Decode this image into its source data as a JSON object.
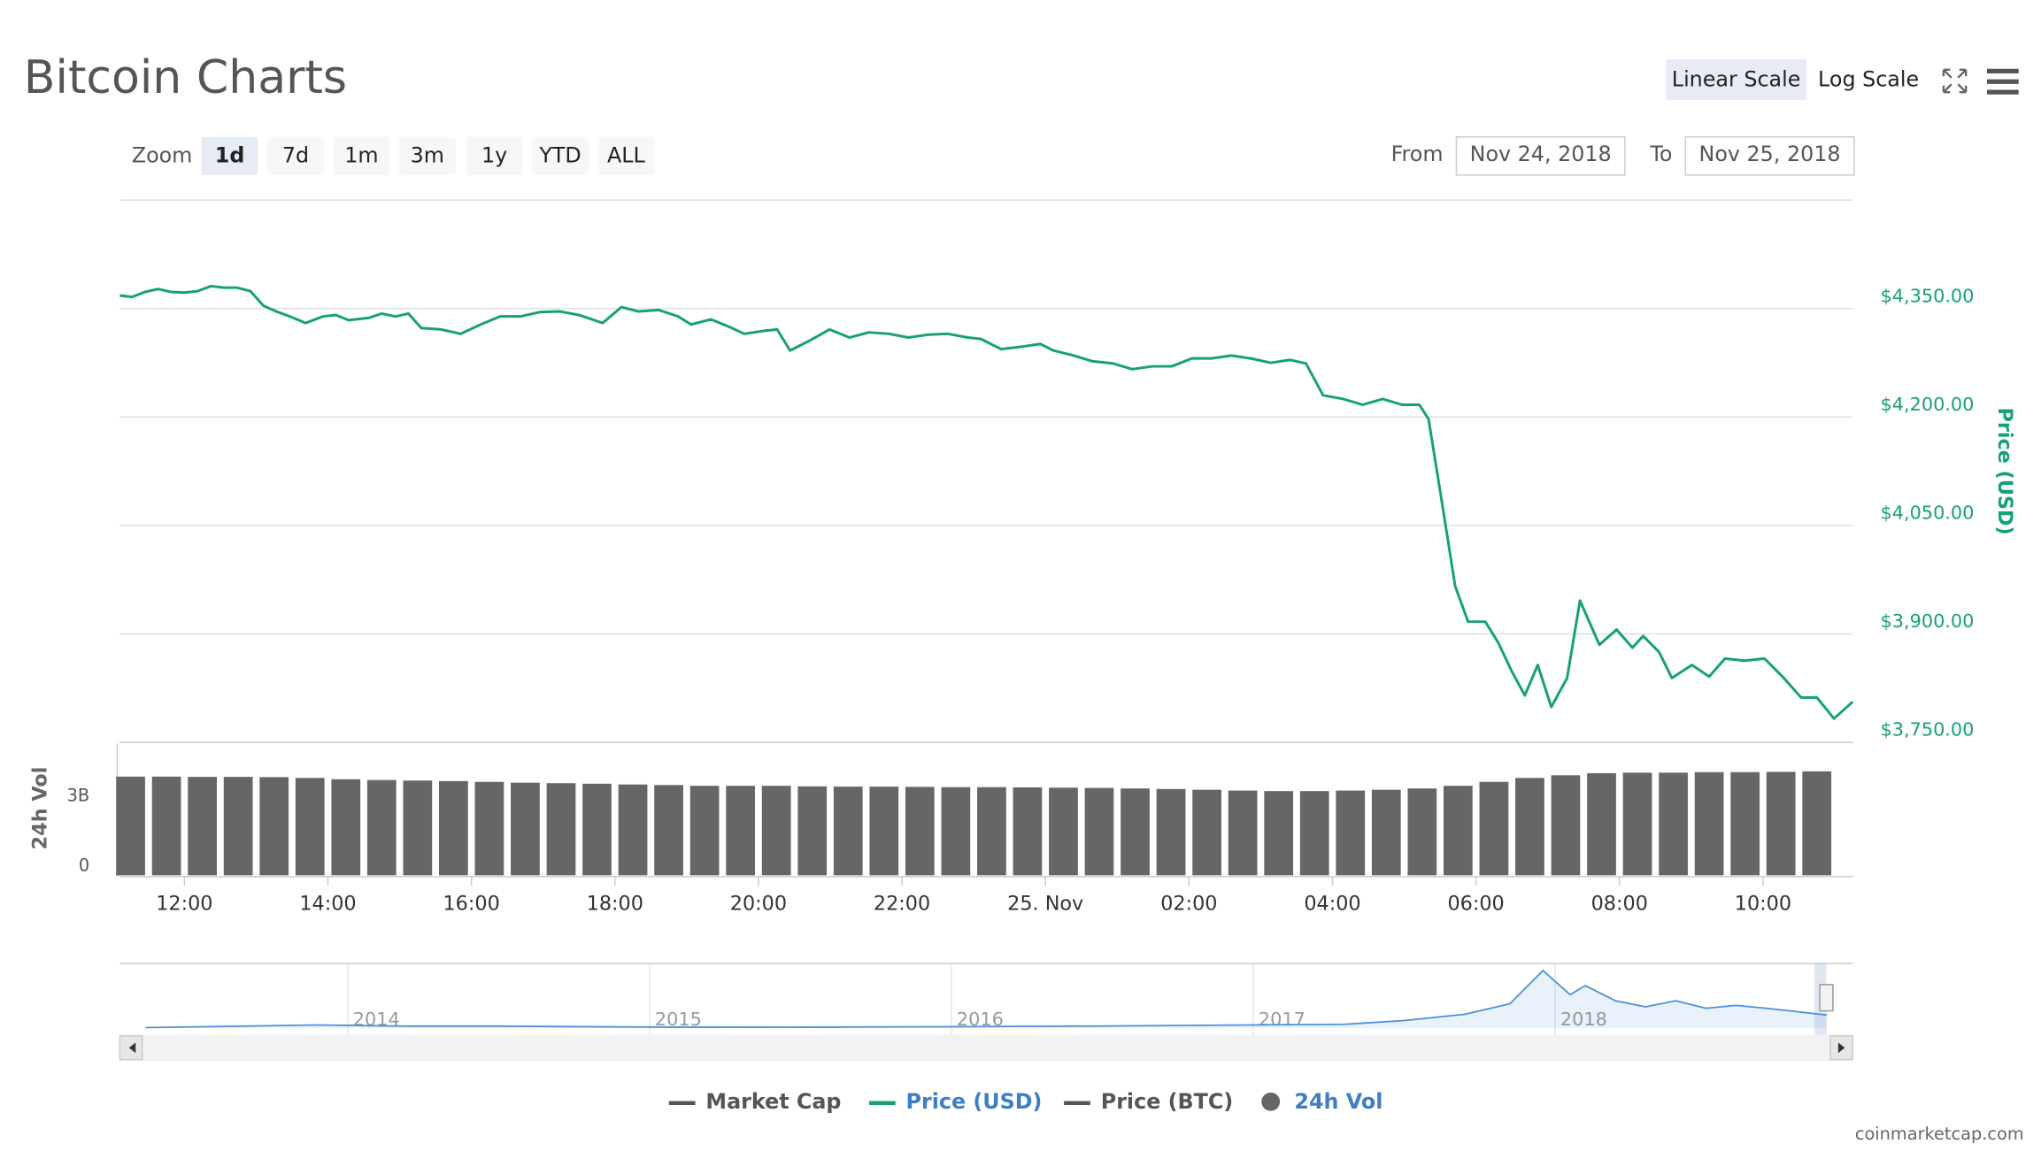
{
  "chart_data": [
    {
      "type": "line",
      "title": "Bitcoin Charts",
      "scale_buttons": [
        "Linear Scale",
        "Log Scale"
      ],
      "scale_selected": 0,
      "zoom_label": "Zoom",
      "zoom_buttons": [
        "1d",
        "7d",
        "1m",
        "3m",
        "1y",
        "YTD",
        "ALL"
      ],
      "zoom_selected": 0,
      "range": {
        "from_label": "From",
        "from": "Nov 24, 2018",
        "to_label": "To",
        "to": "Nov 25, 2018"
      },
      "ylabel": "Price (USD)",
      "y2label": "24h Vol",
      "credit": "coinmarketcap.com",
      "grid": true,
      "xlim": [
        11.1,
        35.25
      ],
      "xticks": [
        {
          "value": 12,
          "label": "12:00"
        },
        {
          "value": 14,
          "label": "14:00"
        },
        {
          "value": 16,
          "label": "16:00"
        },
        {
          "value": 18,
          "label": "18:00"
        },
        {
          "value": 20,
          "label": "20:00"
        },
        {
          "value": 22,
          "label": "22:00"
        },
        {
          "value": 24,
          "label": "25. Nov"
        },
        {
          "value": 26,
          "label": "02:00"
        },
        {
          "value": 28,
          "label": "04:00"
        },
        {
          "value": 30,
          "label": "06:00"
        },
        {
          "value": 32,
          "label": "08:00"
        },
        {
          "value": 34,
          "label": "10:00"
        }
      ],
      "ylim": [
        3750,
        4500
      ],
      "yticks": [
        {
          "value": 3750,
          "label": "$3,750.00"
        },
        {
          "value": 3900,
          "label": "$3,900.00"
        },
        {
          "value": 4050,
          "label": "$4,050.00"
        },
        {
          "value": 4200,
          "label": "$4,200.00"
        },
        {
          "value": 4350,
          "label": "$4,350.00"
        }
      ],
      "y2lim": [
        0,
        5000000000
      ],
      "y2ticks": [
        0,
        {
          "value": 3000000000,
          "label": "3B"
        }
      ],
      "series": [
        {
          "name": "Market Cap",
          "color": "#555555",
          "visible": false
        },
        {
          "name": "Price (USD)",
          "color": "#16a079",
          "visible": true,
          "x": [
            11.1,
            11.27,
            11.45,
            11.63,
            11.82,
            12.0,
            12.18,
            12.37,
            12.55,
            12.73,
            12.92,
            13.1,
            13.28,
            13.47,
            13.69,
            13.93,
            14.11,
            14.29,
            14.57,
            14.75,
            14.94,
            15.12,
            15.3,
            15.58,
            15.85,
            16.13,
            16.4,
            16.68,
            16.95,
            17.23,
            17.5,
            17.83,
            18.09,
            18.33,
            18.61,
            18.88,
            19.06,
            19.34,
            19.61,
            19.8,
            20.07,
            20.26,
            20.44,
            20.72,
            20.99,
            21.27,
            21.54,
            21.82,
            22.09,
            22.37,
            22.64,
            22.92,
            23.1,
            23.38,
            23.65,
            23.93,
            24.11,
            24.39,
            24.66,
            24.94,
            25.21,
            25.49,
            25.76,
            26.04,
            26.31,
            26.59,
            26.86,
            27.14,
            27.41,
            27.63,
            27.87,
            28.15,
            28.42,
            28.7,
            28.97,
            29.21,
            29.34,
            29.52,
            29.71,
            29.89,
            30.13,
            30.31,
            30.5,
            30.68,
            30.86,
            31.05,
            31.27,
            31.45,
            31.72,
            31.96,
            32.18,
            32.33,
            32.55,
            32.73,
            33.01,
            33.25,
            33.47,
            33.74,
            34.02,
            34.29,
            34.53,
            34.75,
            34.99,
            35.25
          ],
          "values": [
            4368,
            4366,
            4373,
            4377,
            4373,
            4372,
            4374,
            4381,
            4379,
            4379,
            4374,
            4354,
            4346,
            4339,
            4330,
            4339,
            4341,
            4334,
            4337,
            4343,
            4339,
            4343,
            4323,
            4321,
            4315,
            4328,
            4339,
            4339,
            4345,
            4346,
            4341,
            4330,
            4352,
            4346,
            4348,
            4339,
            4328,
            4335,
            4324,
            4315,
            4319,
            4321,
            4292,
            4306,
            4321,
            4310,
            4317,
            4315,
            4310,
            4314,
            4315,
            4310,
            4308,
            4294,
            4297,
            4301,
            4292,
            4285,
            4277,
            4274,
            4266,
            4270,
            4270,
            4281,
            4281,
            4285,
            4281,
            4275,
            4279,
            4274,
            4230,
            4225,
            4217,
            4225,
            4217,
            4217,
            4197,
            4085,
            3966,
            3917,
            3917,
            3888,
            3848,
            3815,
            3857,
            3799,
            3839,
            3946,
            3885,
            3906,
            3881,
            3897,
            3875,
            3839,
            3857,
            3841,
            3866,
            3863,
            3866,
            3839,
            3812,
            3812,
            3783,
            3806
          ]
        },
        {
          "name": "Price (BTC)",
          "color": "#555555",
          "visible": false
        },
        {
          "name": "24h Vol",
          "color": "#666666",
          "visible": true,
          "type": "column",
          "axis": "y2",
          "x": [
            11.25,
            11.75,
            12.25,
            12.75,
            13.25,
            13.75,
            14.25,
            14.75,
            15.25,
            15.75,
            16.25,
            16.75,
            17.25,
            17.75,
            18.25,
            18.75,
            19.25,
            19.75,
            20.25,
            20.75,
            21.25,
            21.75,
            22.25,
            22.75,
            23.25,
            23.75,
            24.25,
            24.75,
            25.25,
            25.75,
            26.25,
            26.75,
            27.25,
            27.75,
            28.25,
            28.75,
            29.25,
            29.75,
            30.25,
            30.75,
            31.25,
            31.75,
            32.25,
            32.75,
            33.25,
            33.75,
            34.25,
            34.75
          ],
          "values": [
            3750000000,
            3750000000,
            3740000000,
            3740000000,
            3730000000,
            3700000000,
            3650000000,
            3620000000,
            3600000000,
            3580000000,
            3550000000,
            3520000000,
            3500000000,
            3480000000,
            3450000000,
            3430000000,
            3400000000,
            3400000000,
            3400000000,
            3380000000,
            3370000000,
            3370000000,
            3360000000,
            3350000000,
            3350000000,
            3340000000,
            3330000000,
            3320000000,
            3300000000,
            3280000000,
            3250000000,
            3220000000,
            3200000000,
            3200000000,
            3220000000,
            3250000000,
            3300000000,
            3400000000,
            3550000000,
            3700000000,
            3800000000,
            3880000000,
            3900000000,
            3900000000,
            3920000000,
            3920000000,
            3930000000,
            3950000000
          ]
        }
      ]
    },
    {
      "type": "area",
      "color": "#4a90d9",
      "xlim": [
        2013.245,
        2018.986
      ],
      "xticks": [
        2014,
        2015,
        2016,
        2017,
        2018
      ],
      "ylim": [
        0,
        20000
      ],
      "x": [
        2013.33,
        2013.9,
        2014.2,
        2014.5,
        2015,
        2015.5,
        2016,
        2016.5,
        2017,
        2017.3,
        2017.5,
        2017.7,
        2017.85,
        2017.96,
        2018.05,
        2018.1,
        2018.2,
        2018.3,
        2018.4,
        2018.5,
        2018.6,
        2018.7,
        2018.9
      ],
      "values": [
        120,
        1000,
        600,
        600,
        300,
        250,
        430,
        650,
        1000,
        1200,
        2500,
        4500,
        8000,
        19000,
        11000,
        14000,
        9000,
        7000,
        9000,
        6500,
        7500,
        6500,
        4300
      ]
    }
  ]
}
